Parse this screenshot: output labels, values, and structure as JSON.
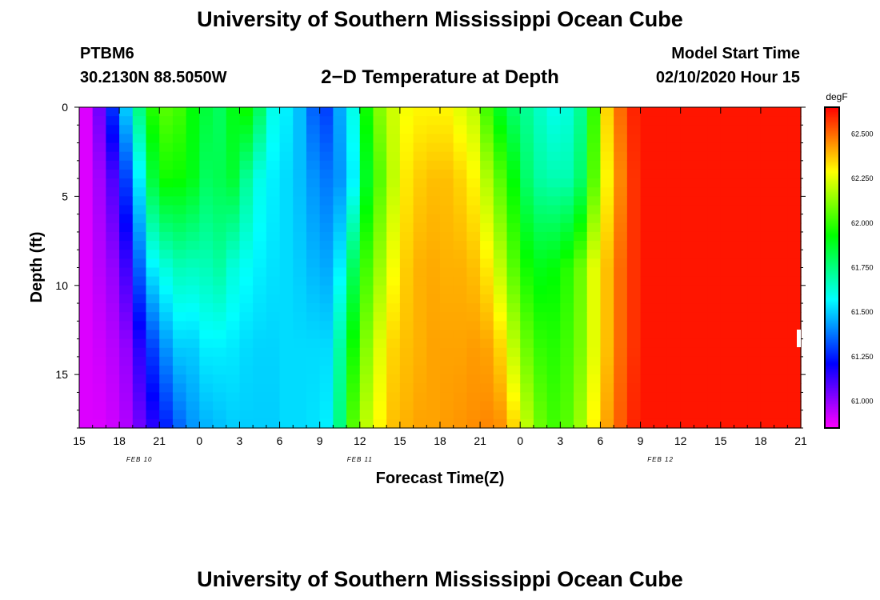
{
  "page": {
    "title_top": "University of Southern Mississippi Ocean Cube",
    "title_bottom": "University of Southern Mississippi Ocean Cube",
    "station_id": "PTBM6",
    "station_coords": "30.2130N 88.5050W",
    "plot_title": "2−D Temperature at Depth",
    "model_start_label": "Model Start Time",
    "model_start_value": "02/10/2020 Hour 15"
  },
  "chart_data": {
    "type": "heatmap",
    "title": "2−D Temperature at Depth",
    "xlabel": "Forecast Time(Z)",
    "ylabel": "Depth (ft)",
    "x_hours_range": [
      0,
      54
    ],
    "x_tick_labels": [
      "15",
      "18",
      "21",
      "0",
      "3",
      "6",
      "9",
      "12",
      "15",
      "18",
      "21",
      "0",
      "3",
      "6",
      "9",
      "12",
      "15",
      "18",
      "21"
    ],
    "x_date_labels": [
      {
        "text": "FEB 10",
        "hour": 4.5
      },
      {
        "text": "FEB 11",
        "hour": 21
      },
      {
        "text": "FEB 12",
        "hour": 43.5
      }
    ],
    "y_range_ft": [
      0,
      18
    ],
    "y_ticks": [
      0,
      5,
      10,
      15
    ],
    "y_tick_labels": [
      "0",
      "5",
      "10",
      "15"
    ],
    "colorbar": {
      "unit": "degF",
      "range": [
        60.85,
        62.65
      ],
      "ticks": [
        61.0,
        61.25,
        61.5,
        61.75,
        62.0,
        62.25,
        62.5
      ],
      "tick_labels": [
        "61.000",
        "61.250",
        "61.500",
        "61.750",
        "62.000",
        "62.250",
        "62.500"
      ]
    },
    "depth_profile_ft": [
      0,
      4,
      9,
      13.5,
      18
    ],
    "time_hours": [
      0,
      1,
      2,
      3,
      4,
      5,
      6,
      7,
      8,
      9,
      10,
      11,
      12,
      13,
      14,
      15,
      16,
      17,
      18,
      19,
      20,
      21,
      22,
      23,
      24,
      25,
      26,
      27,
      28,
      29,
      30,
      31,
      32,
      33,
      34,
      35,
      36,
      37,
      38,
      39,
      40,
      41,
      42,
      43,
      44,
      45,
      46,
      47,
      48,
      49,
      50,
      51,
      52,
      53,
      54
    ],
    "temperature_degF": [
      [
        60.9,
        60.9,
        60.9,
        60.9,
        60.9
      ],
      [
        61.05,
        60.98,
        60.95,
        60.92,
        60.9
      ],
      [
        61.28,
        61.1,
        61.0,
        60.95,
        60.92
      ],
      [
        61.5,
        61.3,
        61.12,
        61.0,
        60.96
      ],
      [
        61.75,
        61.55,
        61.35,
        61.15,
        61.05
      ],
      [
        61.98,
        61.85,
        61.55,
        61.3,
        61.15
      ],
      [
        62.05,
        61.95,
        61.62,
        61.42,
        61.25
      ],
      [
        62.02,
        61.94,
        61.67,
        61.5,
        61.35
      ],
      [
        61.92,
        61.9,
        61.66,
        61.5,
        61.42
      ],
      [
        61.85,
        61.8,
        61.67,
        61.55,
        61.46
      ],
      [
        61.8,
        61.82,
        61.7,
        61.55,
        61.48
      ],
      [
        61.9,
        61.86,
        61.62,
        61.54,
        61.5
      ],
      [
        61.95,
        61.72,
        61.58,
        61.52,
        61.5
      ],
      [
        61.8,
        61.6,
        61.55,
        61.51,
        61.5
      ],
      [
        61.6,
        61.55,
        61.53,
        61.51,
        61.5
      ],
      [
        61.55,
        61.52,
        61.52,
        61.52,
        61.52
      ],
      [
        61.48,
        61.48,
        61.5,
        61.52,
        61.52
      ],
      [
        61.35,
        61.42,
        61.47,
        61.52,
        61.53
      ],
      [
        61.3,
        61.38,
        61.45,
        61.52,
        61.55
      ],
      [
        61.45,
        61.42,
        61.55,
        61.7,
        61.75
      ],
      [
        61.6,
        61.55,
        61.8,
        61.95,
        62.05
      ],
      [
        61.95,
        61.88,
        62.02,
        62.12,
        62.2
      ],
      [
        62.12,
        62.05,
        62.15,
        62.25,
        62.3
      ],
      [
        62.22,
        62.2,
        62.28,
        62.35,
        62.38
      ],
      [
        62.28,
        62.32,
        62.36,
        62.38,
        62.4
      ],
      [
        62.3,
        62.36,
        62.4,
        62.4,
        62.42
      ],
      [
        62.3,
        62.38,
        62.41,
        62.42,
        62.42
      ],
      [
        62.3,
        62.38,
        62.4,
        62.42,
        62.43
      ],
      [
        62.25,
        62.35,
        62.4,
        62.42,
        62.44
      ],
      [
        62.2,
        62.3,
        62.38,
        62.43,
        62.45
      ],
      [
        62.02,
        62.18,
        62.32,
        62.42,
        62.46
      ],
      [
        61.88,
        62.05,
        62.2,
        62.35,
        62.45
      ],
      [
        61.78,
        61.92,
        62.05,
        62.2,
        62.35
      ],
      [
        61.72,
        61.78,
        61.95,
        62.08,
        62.2
      ],
      [
        61.65,
        61.7,
        61.9,
        62.0,
        62.08
      ],
      [
        61.6,
        61.68,
        61.92,
        61.98,
        62.02
      ],
      [
        61.62,
        61.68,
        61.98,
        62.02,
        62.05
      ],
      [
        61.72,
        61.78,
        62.08,
        62.1,
        62.15
      ],
      [
        62.0,
        62.05,
        62.25,
        62.25,
        62.3
      ],
      [
        62.35,
        62.3,
        62.38,
        62.38,
        62.42
      ],
      [
        62.5,
        62.46,
        62.5,
        62.5,
        62.52
      ],
      [
        62.6,
        62.58,
        62.58,
        62.58,
        62.6
      ],
      [
        62.62,
        62.62,
        62.62,
        62.62,
        62.62
      ],
      [
        62.62,
        62.62,
        62.62,
        62.62,
        62.62
      ],
      [
        62.62,
        62.62,
        62.62,
        62.62,
        62.62
      ],
      [
        62.62,
        62.62,
        62.62,
        62.62,
        62.62
      ],
      [
        62.62,
        62.62,
        62.62,
        62.62,
        62.62
      ],
      [
        62.62,
        62.62,
        62.62,
        62.62,
        62.62
      ],
      [
        62.62,
        62.62,
        62.62,
        62.62,
        62.62
      ],
      [
        62.62,
        62.62,
        62.62,
        62.62,
        62.62
      ],
      [
        62.62,
        62.62,
        62.62,
        62.62,
        62.62
      ],
      [
        62.62,
        62.62,
        62.62,
        62.62,
        62.62
      ],
      [
        62.62,
        62.62,
        62.62,
        62.62,
        62.62
      ],
      [
        62.62,
        62.62,
        62.62,
        62.62,
        62.62
      ],
      [
        62.62,
        62.62,
        62.62,
        62.62,
        62.62
      ]
    ]
  }
}
